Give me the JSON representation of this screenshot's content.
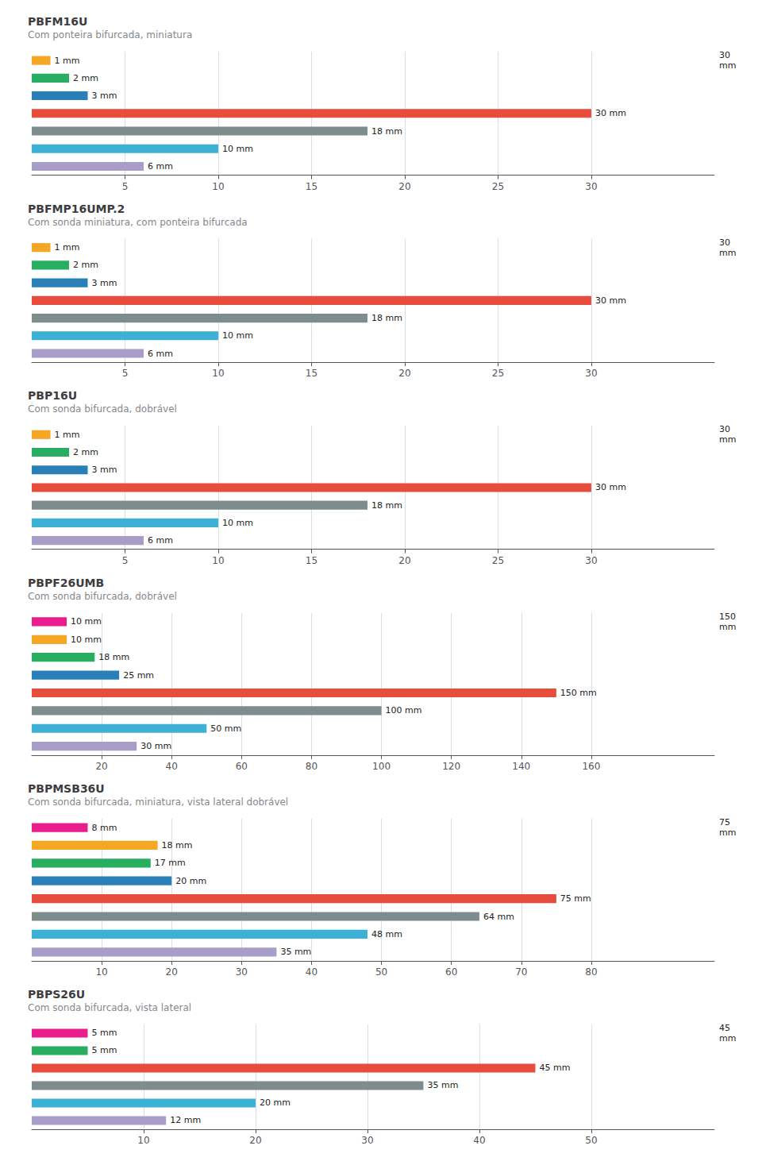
{
  "chart_data": [
    {
      "type": "bar",
      "orientation": "horizontal",
      "title": "PBFM16U",
      "subtitle": "Com ponteira bifurcada, miniatura",
      "categories": [
        null,
        null,
        null,
        null,
        null,
        null,
        null
      ],
      "values": [
        1,
        2,
        3,
        30,
        18,
        10,
        6
      ],
      "value_labels": [
        "1 mm",
        "2 mm",
        "3 mm",
        "30 mm",
        "18 mm",
        "10 mm",
        "6 mm"
      ],
      "data_labels": true,
      "colors": [
        "#F5A623",
        "#27AE60",
        "#2980B9",
        "#E74C3C",
        "#7F8C8D",
        "#3CB0D5",
        "#A89CC8"
      ],
      "xlim": [
        0,
        36.6
      ],
      "xticks": [
        5,
        10,
        15,
        20,
        25,
        30
      ],
      "grid": true,
      "tick_labels": "x",
      "annotations": [
        "30\nmm"
      ]
    },
    {
      "type": "bar",
      "orientation": "horizontal",
      "title": "PBFMP16UMP.2",
      "subtitle": "Com sonda miniatura, com ponteira bifurcada",
      "categories": [
        null,
        null,
        null,
        null,
        null,
        null,
        null
      ],
      "values": [
        1,
        2,
        3,
        30,
        18,
        10,
        6
      ],
      "value_labels": [
        "1 mm",
        "2 mm",
        "3 mm",
        "30 mm",
        "18 mm",
        "10 mm",
        "6 mm"
      ],
      "data_labels": true,
      "colors": [
        "#F5A623",
        "#27AE60",
        "#2980B9",
        "#E74C3C",
        "#7F8C8D",
        "#3CB0D5",
        "#A89CC8"
      ],
      "xlim": [
        0,
        36.6
      ],
      "xticks": [
        5,
        10,
        15,
        20,
        25,
        30
      ],
      "grid": true,
      "tick_labels": "x",
      "annotations": [
        "30\nmm"
      ]
    },
    {
      "type": "bar",
      "orientation": "horizontal",
      "title": "PBP16U",
      "subtitle": "Com sonda bifurcada, dobrável",
      "categories": [
        null,
        null,
        null,
        null,
        null,
        null,
        null
      ],
      "values": [
        1,
        2,
        3,
        30,
        18,
        10,
        6
      ],
      "value_labels": [
        "1 mm",
        "2 mm",
        "3 mm",
        "30 mm",
        "18 mm",
        "10 mm",
        "6 mm"
      ],
      "data_labels": true,
      "colors": [
        "#F5A623",
        "#27AE60",
        "#2980B9",
        "#E74C3C",
        "#7F8C8D",
        "#3CB0D5",
        "#A89CC8"
      ],
      "xlim": [
        0,
        36.6
      ],
      "xticks": [
        5,
        10,
        15,
        20,
        25,
        30
      ],
      "grid": true,
      "tick_labels": "x",
      "annotations": [
        "30\nmm"
      ]
    },
    {
      "type": "bar",
      "orientation": "horizontal",
      "title": "PBPF26UMB",
      "subtitle": "Com sonda bifurcada, dobrável",
      "categories": [
        null,
        null,
        null,
        null,
        null,
        null,
        null,
        null
      ],
      "values": [
        10,
        10,
        18,
        25,
        150,
        100,
        50,
        30
      ],
      "value_labels": [
        "10 mm",
        "10 mm",
        "18 mm",
        "25 mm",
        "150 mm",
        "100 mm",
        "50 mm",
        "30 mm"
      ],
      "data_labels": true,
      "colors": [
        "#E91E8C",
        "#F5A623",
        "#27AE60",
        "#2980B9",
        "#E74C3C",
        "#7F8C8D",
        "#3CB0D5",
        "#A89CC8"
      ],
      "xlim": [
        0,
        195.2
      ],
      "xticks": [
        20,
        40,
        60,
        80,
        100,
        120,
        140,
        160
      ],
      "grid": true,
      "tick_labels": "x",
      "annotations": [
        "150\nmm"
      ]
    },
    {
      "type": "bar",
      "orientation": "horizontal",
      "title": "PBPMSB36U",
      "subtitle": "Com sonda bifurcada, miniatura, vista lateral dobrável",
      "categories": [
        null,
        null,
        null,
        null,
        null,
        null,
        null,
        null
      ],
      "values": [
        8,
        18,
        17,
        20,
        75,
        64,
        48,
        35
      ],
      "value_labels": [
        "8 mm",
        "18 mm",
        "17 mm",
        "20 mm",
        "75 mm",
        "64 mm",
        "48 mm",
        "35 mm"
      ],
      "data_labels": true,
      "colors": [
        "#E91E8C",
        "#F5A623",
        "#27AE60",
        "#2980B9",
        "#E74C3C",
        "#7F8C8D",
        "#3CB0D5",
        "#A89CC8"
      ],
      "xlim": [
        0,
        97.6
      ],
      "xticks": [
        10,
        20,
        30,
        40,
        50,
        60,
        70,
        80
      ],
      "grid": true,
      "tick_labels": "x",
      "annotations": [
        "75\nmm"
      ]
    },
    {
      "type": "bar",
      "orientation": "horizontal",
      "title": "PBPS26U",
      "subtitle": "Com sonda bifurcada, vista lateral",
      "categories": [
        null,
        null,
        null,
        null,
        null,
        null
      ],
      "values": [
        5,
        5,
        45,
        35,
        20,
        12
      ],
      "value_labels": [
        "5 mm",
        "5 mm",
        "45 mm",
        "35 mm",
        "20 mm",
        "12 mm"
      ],
      "data_labels": true,
      "colors": [
        "#E91E8C",
        "#27AE60",
        "#E74C3C",
        "#7F8C8D",
        "#3CB0D5",
        "#A89CC8"
      ],
      "xlim": [
        0,
        61
      ],
      "xticks": [
        10,
        20,
        30,
        40,
        50
      ],
      "grid": true,
      "tick_labels": "x",
      "annotations": [
        "45\nmm"
      ]
    }
  ]
}
